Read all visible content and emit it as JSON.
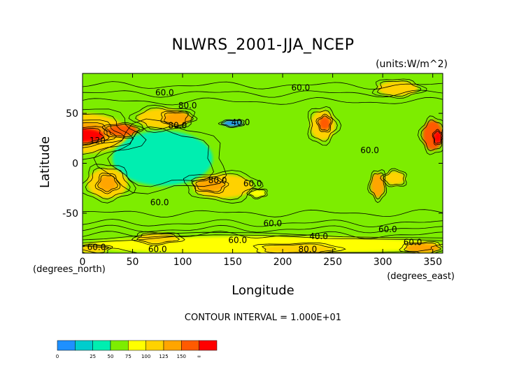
{
  "chart_data": {
    "type": "heatmap",
    "title": "NLWRS_2001-JJA_NCEP",
    "units": "(units:W/m^2)",
    "xlabel": "Longitude",
    "ylabel": "Latitude",
    "x_unit_label": "(degrees_east)",
    "y_unit_label": "(degrees_north)",
    "xlim": [
      0,
      360
    ],
    "ylim": [
      -90,
      90
    ],
    "x_ticks": [
      0,
      50,
      100,
      150,
      200,
      250,
      300,
      350
    ],
    "y_ticks": [
      50,
      0,
      -50
    ],
    "contour_interval_text": "CONTOUR INTERVAL = 1.000E+01",
    "contour_labels": [
      {
        "text": "60.0",
        "lon": 82,
        "lat": 68
      },
      {
        "text": "80.0",
        "lon": 105,
        "lat": 55
      },
      {
        "text": "120",
        "lon": 15,
        "lat": 20
      },
      {
        "text": "80.0",
        "lon": 95,
        "lat": 35
      },
      {
        "text": "60.0",
        "lon": 218,
        "lat": 73
      },
      {
        "text": "40.0",
        "lon": 158,
        "lat": 38
      },
      {
        "text": "60.0",
        "lon": 287,
        "lat": 10
      },
      {
        "text": "80.0",
        "lon": 135,
        "lat": -20
      },
      {
        "text": "60.0",
        "lon": 170,
        "lat": -23
      },
      {
        "text": "60.0",
        "lon": 77,
        "lat": -42
      },
      {
        "text": "60.0",
        "lon": 190,
        "lat": -63
      },
      {
        "text": "40.0",
        "lon": 236,
        "lat": -76
      },
      {
        "text": "60.0",
        "lon": 305,
        "lat": -69
      },
      {
        "text": "60.0",
        "lon": 155,
        "lat": -80
      },
      {
        "text": "80.0",
        "lon": 225,
        "lat": -89
      },
      {
        "text": "60.0",
        "lon": 75,
        "lat": -89
      },
      {
        "text": "60.0",
        "lon": 14,
        "lat": -87
      },
      {
        "text": "60.0",
        "lon": 330,
        "lat": -82
      }
    ],
    "colorbar": {
      "colors": [
        "#1e90ff",
        "#00cdcd",
        "#00eeb0",
        "#7ded00",
        "#ffff00",
        "#ffd200",
        "#ffa500",
        "#ff5a00",
        "#ff0000"
      ],
      "tick_labels": [
        "0",
        "25",
        "50",
        "75",
        "100",
        "125",
        "150",
        "∞"
      ]
    },
    "field_blobs": [
      {
        "lon": 0,
        "lat": 0,
        "w": 360,
        "h": 180,
        "level": 3
      },
      {
        "lon": 80,
        "lat": 5,
        "w": 100,
        "h": 55,
        "level": 2
      },
      {
        "lon": 150,
        "lat": 40,
        "w": 20,
        "h": 6,
        "level": 0
      },
      {
        "lon": 0,
        "lat": 30,
        "w": 90,
        "h": 40,
        "level": 5
      },
      {
        "lon": 0,
        "lat": 30,
        "w": 60,
        "h": 22,
        "level": 6
      },
      {
        "lon": 0,
        "lat": 28,
        "w": 42,
        "h": 14,
        "level": 8
      },
      {
        "lon": 40,
        "lat": 33,
        "w": 30,
        "h": 12,
        "level": 7
      },
      {
        "lon": 80,
        "lat": 45,
        "w": 50,
        "h": 20,
        "level": 5
      },
      {
        "lon": 95,
        "lat": 45,
        "w": 28,
        "h": 12,
        "level": 6
      },
      {
        "lon": 240,
        "lat": 38,
        "w": 25,
        "h": 30,
        "level": 5
      },
      {
        "lon": 242,
        "lat": 40,
        "w": 12,
        "h": 14,
        "level": 7
      },
      {
        "lon": 350,
        "lat": 28,
        "w": 20,
        "h": 30,
        "level": 7
      },
      {
        "lon": 355,
        "lat": 26,
        "w": 8,
        "h": 12,
        "level": 8
      },
      {
        "lon": 315,
        "lat": 75,
        "w": 40,
        "h": 15,
        "level": 5
      },
      {
        "lon": 25,
        "lat": -20,
        "w": 40,
        "h": 30,
        "level": 5
      },
      {
        "lon": 25,
        "lat": -20,
        "w": 18,
        "h": 16,
        "level": 6
      },
      {
        "lon": 140,
        "lat": -23,
        "w": 60,
        "h": 24,
        "level": 5
      },
      {
        "lon": 128,
        "lat": -22,
        "w": 28,
        "h": 12,
        "level": 6
      },
      {
        "lon": 175,
        "lat": -30,
        "w": 16,
        "h": 8,
        "level": 4
      },
      {
        "lon": 295,
        "lat": -22,
        "w": 14,
        "h": 25,
        "level": 6
      },
      {
        "lon": 312,
        "lat": -15,
        "w": 20,
        "h": 14,
        "level": 5
      },
      {
        "lon": 180,
        "lat": -82,
        "w": 360,
        "h": 18,
        "level": 4
      },
      {
        "lon": 75,
        "lat": -75,
        "w": 40,
        "h": 10,
        "level": 5
      },
      {
        "lon": 215,
        "lat": -86,
        "w": 70,
        "h": 10,
        "level": 5
      },
      {
        "lon": 340,
        "lat": -85,
        "w": 35,
        "h": 10,
        "level": 6
      },
      {
        "lon": 10,
        "lat": -86,
        "w": 30,
        "h": 8,
        "level": 5
      }
    ]
  }
}
